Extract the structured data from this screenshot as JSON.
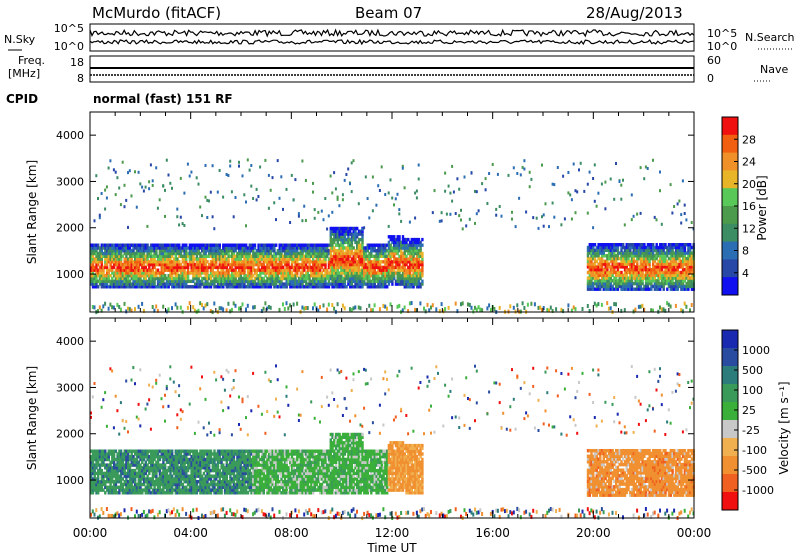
{
  "header": {
    "station": "McMurdo (fitACF)",
    "beam": "Beam 07",
    "date": "28/Aug/2013"
  },
  "noise_panel": {
    "left_label": "N.Sky",
    "right_label": "N.Search",
    "ticks_left": [
      "10^5",
      "10^0"
    ],
    "ticks_right": [
      "10^5",
      "10^0"
    ]
  },
  "freq_panel": {
    "left_label_1": "Freq.",
    "left_label_2": "[MHz]",
    "right_label": "Nave",
    "ticks_left": [
      "18",
      "8"
    ],
    "ticks_right": [
      "60",
      "0"
    ]
  },
  "cpid": {
    "label": "CPID",
    "value": "normal (fast) 151 RF"
  },
  "colors": {
    "power_scale": [
      "#1010f0",
      "#2848a8",
      "#2c6eb4",
      "#3c8c64",
      "#4c9a4c",
      "#58c858",
      "#e8b428",
      "#f09028",
      "#f06010",
      "#f01010"
    ],
    "velocity_scale": [
      "#f01010",
      "#f06020",
      "#f09030",
      "#f0b050",
      "#c8c8c8",
      "#3ab03a",
      "#3a9a5a",
      "#2c7c7c",
      "#2a4ca0",
      "#1a2ab0"
    ]
  },
  "chart_data": [
    {
      "type": "heatmap",
      "panel": "power",
      "xlabel": "",
      "ylabel": "Slant Range [km]",
      "colorbar_label": "Power [dB]",
      "colorbar_ticks": [
        "28",
        "24",
        "20",
        "16",
        "12",
        "8",
        "4"
      ],
      "ylim": [
        180,
        4500
      ],
      "y_ticks": [
        "1000",
        "2000",
        "3000",
        "4000"
      ],
      "xlim": [
        0,
        24
      ]
    },
    {
      "type": "heatmap",
      "panel": "velocity",
      "xlabel": "Time UT",
      "ylabel": "Slant Range [km]",
      "colorbar_label": "Velocity [m s⁻¹]",
      "colorbar_ticks": [
        "1000",
        "500",
        "100",
        "25",
        "-25",
        "-100",
        "-500",
        "-1000"
      ],
      "ylim": [
        180,
        4500
      ],
      "y_ticks": [
        "1000",
        "2000",
        "3000",
        "4000"
      ],
      "x_ticks": [
        "00:00",
        "04:00",
        "08:00",
        "12:00",
        "16:00",
        "20:00",
        "00:00"
      ],
      "xlim": [
        0,
        24
      ]
    }
  ]
}
